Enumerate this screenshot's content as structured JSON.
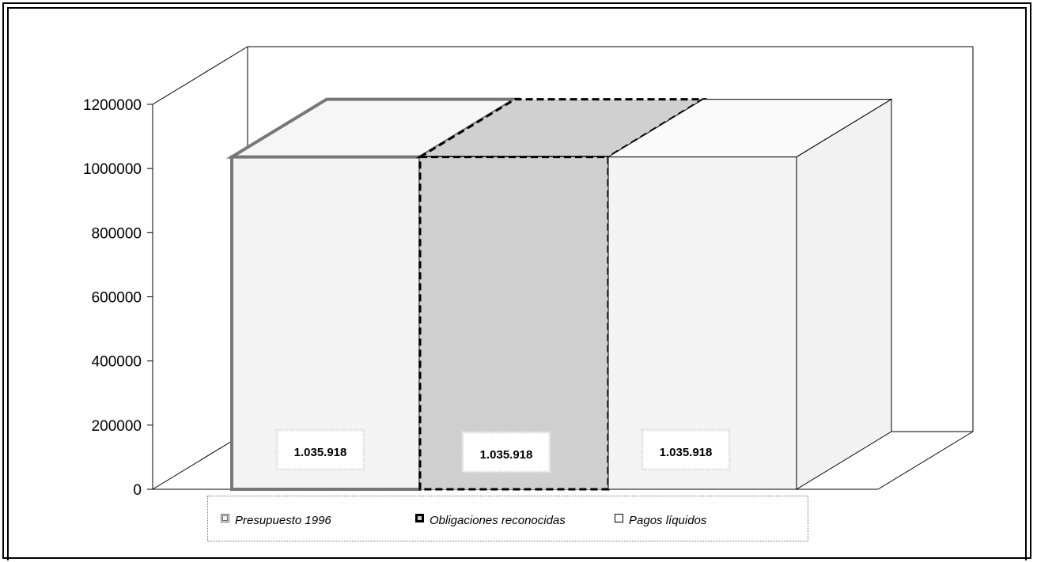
{
  "chart_data": {
    "type": "bar",
    "categories": [
      "Presupuesto 1996",
      "Obligaciones reconocidas",
      "Pagos líquidos"
    ],
    "values": [
      1035918,
      1035918,
      1035918
    ],
    "data_labels": [
      "1.035.918",
      "1.035.918",
      "1.035.918"
    ],
    "y_ticks": [
      "0",
      "200000",
      "400000",
      "600000",
      "800000",
      "1000000",
      "1200000"
    ],
    "ylim": [
      0,
      1200000
    ],
    "three_d": true,
    "legend": {
      "placement": "bottom",
      "entries": [
        "Presupuesto 1996",
        "Obligaciones reconocidas",
        "Pagos líquidos"
      ]
    },
    "colors": {
      "series_0_fill": "#f4f4f4",
      "series_1_fill": "#cfcfcf",
      "series_2_fill": "#f4f4f4"
    }
  }
}
